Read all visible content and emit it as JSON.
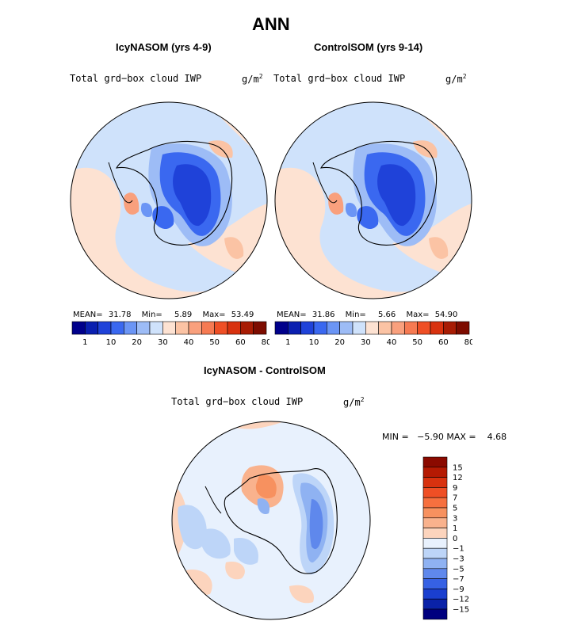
{
  "figure": {
    "title": "ANN"
  },
  "panels": [
    {
      "title": "IcyNASOM (yrs 4-9)",
      "field_label": "Total grd−box cloud IWP",
      "units_text": "g/m",
      "units_sup": "2",
      "stats": {
        "mean_label": "MEAN=",
        "mean": "31.78",
        "min_label": "Min=",
        "min": "5.89",
        "max_label": "Max=",
        "max": "53.49"
      },
      "colorbar": {
        "ticks": [
          "1",
          "10",
          "20",
          "30",
          "40",
          "50",
          "60",
          "80"
        ],
        "colors": [
          "#00008b",
          "#0a1fb0",
          "#1f42d9",
          "#3a68f0",
          "#6b95f5",
          "#9dbcf6",
          "#cfe2fb",
          "#fde2d2",
          "#fbc3a4",
          "#f9a07d",
          "#f67a52",
          "#ef4f25",
          "#d8320f",
          "#a81c04",
          "#7d0c00"
        ]
      }
    },
    {
      "title": "ControlSOM (yrs 9-14)",
      "field_label": "Total grd−box cloud IWP",
      "units_text": "g/m",
      "units_sup": "2",
      "stats": {
        "mean_label": "MEAN=",
        "mean": "31.86",
        "min_label": "Min=",
        "min": "5.66",
        "max_label": "Max=",
        "max": "54.90"
      },
      "colorbar": {
        "ticks": [
          "1",
          "10",
          "20",
          "30",
          "40",
          "50",
          "60",
          "80"
        ],
        "colors": [
          "#00008b",
          "#0a1fb0",
          "#1f42d9",
          "#3a68f0",
          "#6b95f5",
          "#9dbcf6",
          "#cfe2fb",
          "#fde2d2",
          "#fbc3a4",
          "#f9a07d",
          "#f67a52",
          "#ef4f25",
          "#d8320f",
          "#a81c04",
          "#7d0c00"
        ]
      }
    }
  ],
  "difference": {
    "title": "IcyNASOM - ControlSOM",
    "field_label": "Total grd−box cloud IWP",
    "units_text": "g/m",
    "units_sup": "2",
    "minmax_text": "MIN =   −5.90 MAX =    4.68",
    "colorbar": {
      "ticks": [
        "15",
        "12",
        "9",
        "7",
        "5",
        "3",
        "1",
        "0",
        "−1",
        "−3",
        "−5",
        "−7",
        "−9",
        "−12",
        "−15"
      ],
      "colors": [
        "#8b0a00",
        "#b51a03",
        "#d8320f",
        "#ef4f25",
        "#f6703f",
        "#f7915f",
        "#f9b28d",
        "#fcd4bd",
        "#e8f1fd",
        "#bdd5f8",
        "#8fb2f2",
        "#5f88ec",
        "#3661e4",
        "#1a3fcf",
        "#0a22a8",
        "#00007f"
      ]
    }
  }
}
